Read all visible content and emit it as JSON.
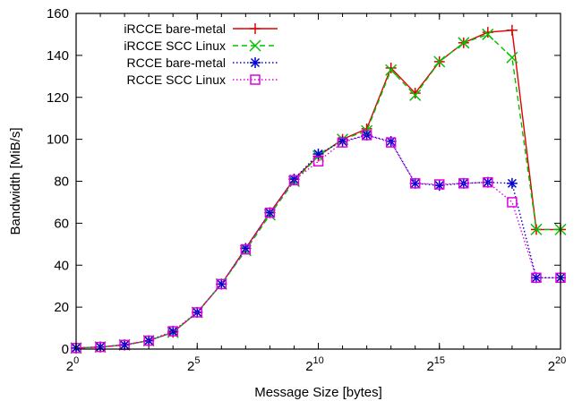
{
  "chart_data": {
    "type": "line",
    "title": "",
    "xlabel": "Message Size [bytes]",
    "ylabel": "Bandwidth [MiB/s]",
    "x_scale": "log2",
    "x_exponents": [
      0,
      1,
      2,
      3,
      4,
      5,
      6,
      7,
      8,
      9,
      10,
      11,
      12,
      13,
      14,
      15,
      16,
      17,
      18,
      19,
      20
    ],
    "xlim_exponent": [
      0,
      20
    ],
    "ylim": [
      0,
      160
    ],
    "x_ticks": [
      {
        "base": "2",
        "exp": "0",
        "exponent": 0
      },
      {
        "base": "2",
        "exp": "5",
        "exponent": 5
      },
      {
        "base": "2",
        "exp": "10",
        "exponent": 10
      },
      {
        "base": "2",
        "exp": "15",
        "exponent": 15
      },
      {
        "base": "2",
        "exp": "20",
        "exponent": 20
      }
    ],
    "y_ticks": [
      "0",
      "20",
      "40",
      "60",
      "80",
      "100",
      "120",
      "140",
      "160"
    ],
    "grid": false,
    "legend_position": "top-left",
    "series": [
      {
        "name": "iRCCE bare-metal",
        "color": "#e00000",
        "marker": "plus",
        "dash": "solid",
        "values": [
          0.5,
          1,
          2,
          4,
          8,
          17.5,
          31,
          48,
          65,
          81,
          92,
          100,
          105,
          134,
          122,
          137,
          146,
          151,
          152,
          57,
          57
        ]
      },
      {
        "name": "iRCCE SCC Linux",
        "color": "#00c000",
        "marker": "x",
        "dash": "dashed",
        "values": [
          0.5,
          1,
          2,
          4,
          8,
          17.5,
          31,
          47,
          64,
          80,
          92,
          100,
          104,
          133,
          121,
          137,
          146,
          150,
          139,
          57,
          57
        ]
      },
      {
        "name": "RCCE bare-metal",
        "color": "#0000d0",
        "marker": "asterisk",
        "dash": "dotted",
        "values": [
          0.5,
          1,
          2,
          4,
          8.5,
          17.5,
          31,
          48,
          65,
          81,
          93,
          99,
          102,
          99,
          79,
          78,
          79,
          79.5,
          79,
          34,
          34
        ]
      },
      {
        "name": "RCCE SCC Linux",
        "color": "#e000e0",
        "marker": "square",
        "dash": "dotted",
        "values": [
          0.5,
          1,
          2,
          4,
          8.5,
          17.5,
          31,
          47.5,
          65,
          80.5,
          89.5,
          98.5,
          102,
          98.5,
          79,
          78.5,
          79,
          79.5,
          70,
          34,
          34
        ]
      }
    ]
  }
}
